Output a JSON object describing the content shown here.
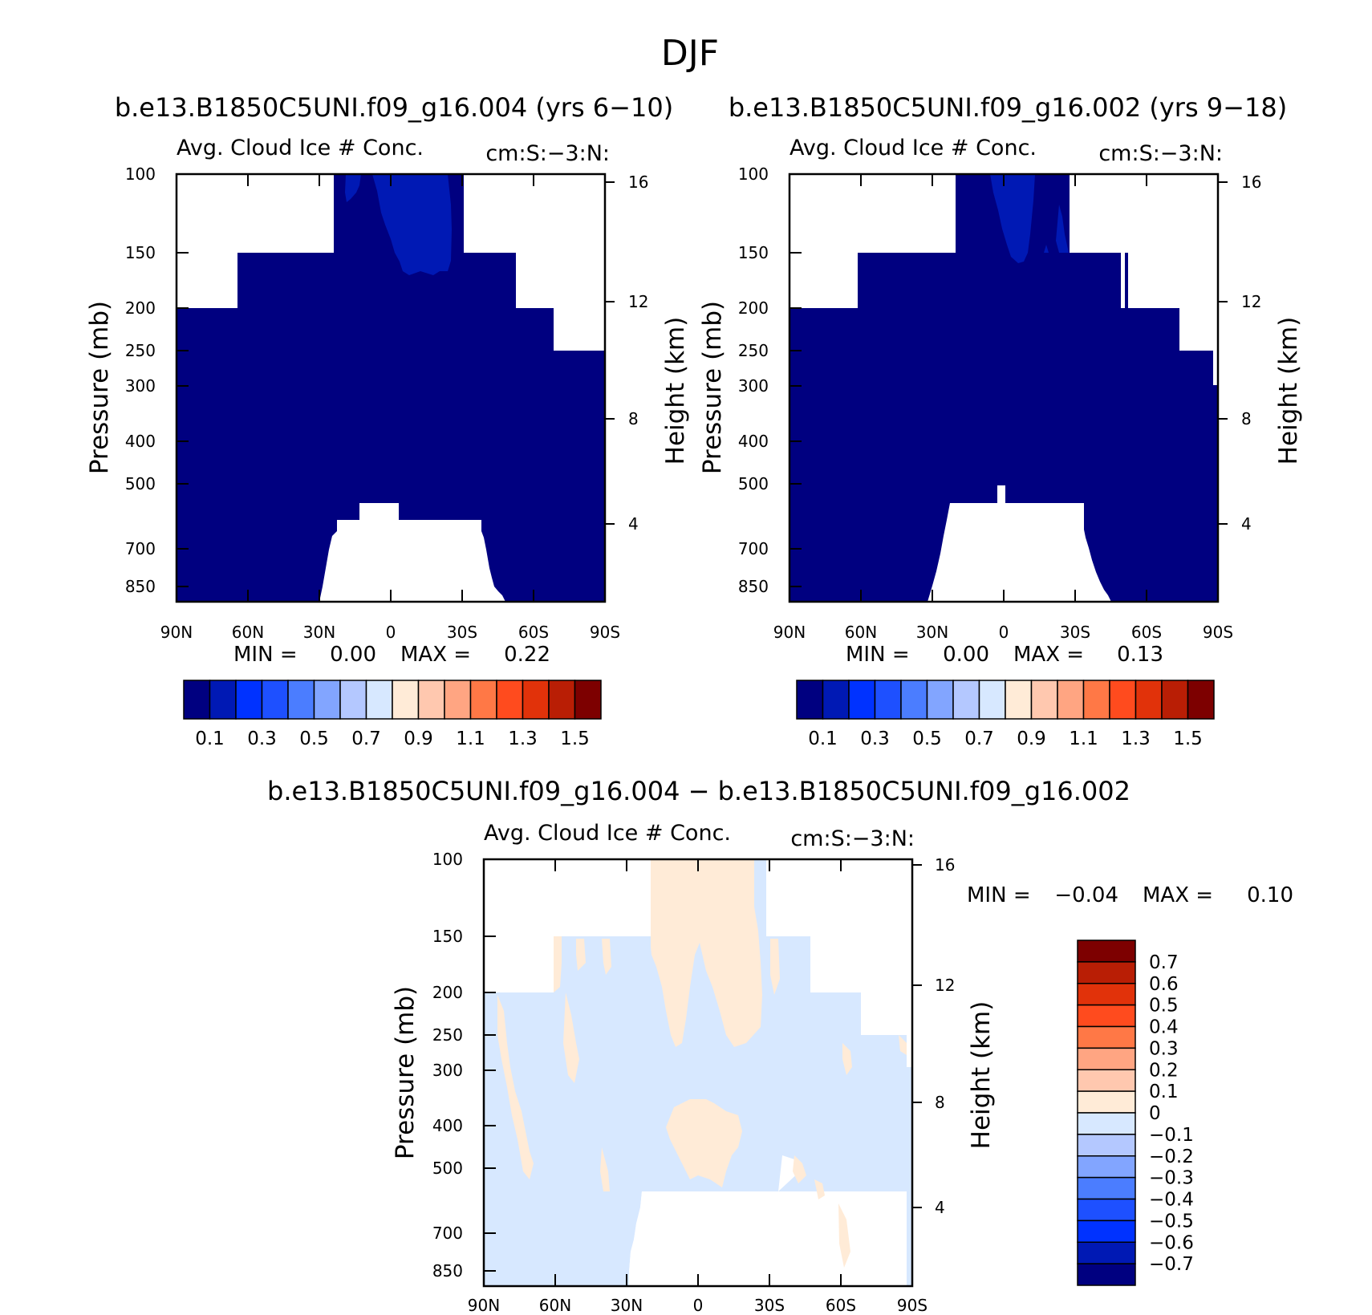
{
  "figure_title": "DJF",
  "chart_data": [
    {
      "type": "heatmap",
      "id": "top-left",
      "title": "b.e13.B1850C5UNI.f09_g16.004 (yrs 6-10)",
      "variable": "Avg. Cloud Ice # Conc.",
      "units": "cm:S:-3:N:",
      "xlabel": "",
      "ylabel": "Pressure (mb)",
      "y2label": "Height (km)",
      "x_ticks": [
        "90N",
        "60N",
        "30N",
        "0",
        "30S",
        "60S",
        "90S"
      ],
      "y_ticks": [
        "100",
        "150",
        "200",
        "250",
        "300",
        "400",
        "500",
        "700",
        "850"
      ],
      "y2_ticks": [
        "16",
        "12",
        "8",
        "4"
      ],
      "stats": {
        "min_label": "MIN =",
        "min": "0.00",
        "max_label": "MAX =",
        "max": "0.22"
      },
      "field": {
        "dominant_bin": "<0.1",
        "secondary_bin": "0.1-0.2",
        "secondary_region": "upper tropical troposphere near 0-20S, 100-150 mb"
      },
      "colorbar": {
        "ticks": [
          "0.1",
          "0.3",
          "0.5",
          "0.7",
          "0.9",
          "1.1",
          "1.3",
          "1.5"
        ]
      }
    },
    {
      "type": "heatmap",
      "id": "top-right",
      "title": "b.e13.B1850C5UNI.f09_g16.002 (yrs 9-18)",
      "variable": "Avg. Cloud Ice # Conc.",
      "units": "cm:S:-3:N:",
      "xlabel": "",
      "ylabel": "Pressure (mb)",
      "y2label": "Height (km)",
      "x_ticks": [
        "90N",
        "60N",
        "30N",
        "0",
        "30S",
        "60S",
        "90S"
      ],
      "y_ticks": [
        "100",
        "150",
        "200",
        "250",
        "300",
        "400",
        "500",
        "700",
        "850"
      ],
      "y2_ticks": [
        "16",
        "12",
        "8",
        "4"
      ],
      "stats": {
        "min_label": "MIN =",
        "min": "0.00",
        "max_label": "MAX =",
        "max": "0.13"
      },
      "field": {
        "dominant_bin": "<0.1",
        "secondary_bin": "0.1-0.2",
        "secondary_region": "upper tropical troposphere near 0-10S, 100-150 mb"
      },
      "colorbar": {
        "ticks": [
          "0.1",
          "0.3",
          "0.5",
          "0.7",
          "0.9",
          "1.1",
          "1.3",
          "1.5"
        ]
      }
    },
    {
      "type": "heatmap",
      "id": "difference",
      "title": "b.e13.B1850C5UNI.f09_g16.004 - b.e13.B1850C5UNI.f09_g16.002",
      "variable": "Avg. Cloud Ice # Conc.",
      "units": "cm:S:-3:N:",
      "xlabel": "",
      "ylabel": "Pressure (mb)",
      "y2label": "Height (km)",
      "x_ticks": [
        "90N",
        "60N",
        "30N",
        "0",
        "30S",
        "60S",
        "90S"
      ],
      "y_ticks": [
        "100",
        "150",
        "200",
        "250",
        "300",
        "400",
        "500",
        "700",
        "850"
      ],
      "y2_ticks": [
        "16",
        "12",
        "8",
        "4"
      ],
      "stats": {
        "min_label": "MIN =",
        "min": "-0.04",
        "max_label": "MAX =",
        "max": "0.10"
      },
      "field": {
        "dominant_bin": "-0.1 to 0",
        "secondary_bin": "0 to 0.1"
      },
      "colorbar": {
        "ticks": [
          "0.7",
          "0.6",
          "0.5",
          "0.4",
          "0.3",
          "0.2",
          "0.1",
          "0",
          "-0.1",
          "-0.2",
          "-0.3",
          "-0.4",
          "-0.5",
          "-0.6",
          "-0.7"
        ]
      }
    }
  ],
  "colors": {
    "abs_scale": [
      "#000080",
      "#0019b4",
      "#0032ff",
      "#1e50ff",
      "#4b7dff",
      "#82a5ff",
      "#b4c8ff",
      "#d7e8ff",
      "#ffebd7",
      "#ffc8af",
      "#ffa582",
      "#ff7846",
      "#ff4b1e",
      "#e1320a",
      "#b91e05",
      "#7d0000"
    ],
    "diff_scale": [
      "#7d0000",
      "#b91e05",
      "#e1320a",
      "#ff4b1e",
      "#ff7846",
      "#ffa582",
      "#ffc8af",
      "#ffebd7",
      "#d7e8ff",
      "#b4c8ff",
      "#82a5ff",
      "#4b7dff",
      "#1e50ff",
      "#0032ff",
      "#0019b4",
      "#000080"
    ]
  }
}
